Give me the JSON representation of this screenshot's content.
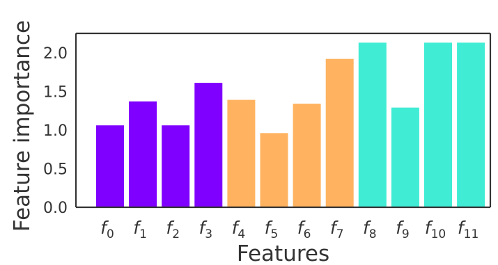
{
  "chart_data": {
    "type": "bar",
    "categories": [
      {
        "base": "f",
        "sub": "0"
      },
      {
        "base": "f",
        "sub": "1"
      },
      {
        "base": "f",
        "sub": "2"
      },
      {
        "base": "f",
        "sub": "3"
      },
      {
        "base": "f",
        "sub": "4"
      },
      {
        "base": "f",
        "sub": "5"
      },
      {
        "base": "f",
        "sub": "6"
      },
      {
        "base": "f",
        "sub": "7"
      },
      {
        "base": "f",
        "sub": "8"
      },
      {
        "base": "f",
        "sub": "9"
      },
      {
        "base": "f",
        "sub": "10"
      },
      {
        "base": "f",
        "sub": "11"
      }
    ],
    "values": [
      1.06,
      1.37,
      1.06,
      1.61,
      1.39,
      0.96,
      1.34,
      1.92,
      2.13,
      1.29,
      2.13,
      2.13
    ],
    "colors": [
      "#7f00ff",
      "#7f00ff",
      "#7f00ff",
      "#7f00ff",
      "#ffb360",
      "#ffb360",
      "#ffb360",
      "#ffb360",
      "#40ecd4",
      "#40ecd4",
      "#40ecd4",
      "#40ecd4"
    ],
    "xlabel": "Features",
    "ylabel": "Feature importance",
    "ylim": [
      0,
      2.25
    ],
    "yticks": [
      0.0,
      0.5,
      1.0,
      1.5,
      2.0
    ],
    "ytick_labels": [
      "0.0",
      "0.5",
      "1.0",
      "1.5",
      "2.0"
    ],
    "grid": false,
    "axis_color": "#333333"
  }
}
